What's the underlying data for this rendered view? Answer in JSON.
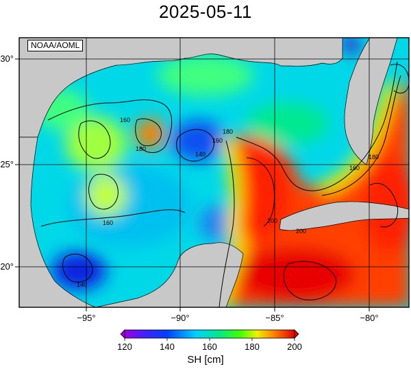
{
  "title": "2025-05-11",
  "source_label": "NOAA/AOML",
  "axes": {
    "lat_ticks": [
      "30°",
      "25°",
      "20°"
    ],
    "lon_ticks": [
      "−95°",
      "−90°",
      "−85°",
      "−80°"
    ]
  },
  "contour_labels": [
    "160",
    "180",
    "140",
    "160",
    "180",
    "160",
    "200",
    "200",
    "180",
    "160",
    "140"
  ],
  "colorbar": {
    "ticks": [
      "120",
      "140",
      "160",
      "180",
      "200"
    ],
    "label": "SH [cm]",
    "range": [
      120,
      200
    ],
    "colors": [
      "#7a00c8",
      "#2020ff",
      "#00c8ff",
      "#00e070",
      "#f0f000",
      "#ff6000",
      "#e00000"
    ]
  }
}
